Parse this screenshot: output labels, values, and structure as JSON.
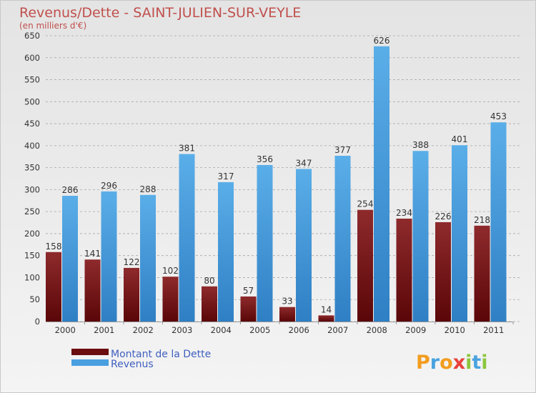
{
  "chart_data": {
    "type": "bar",
    "title": "Revenus/Dette - SAINT-JULIEN-SUR-VEYLE",
    "subtitle": "(en milliers d'€)",
    "categories": [
      "2000",
      "2001",
      "2002",
      "2003",
      "2004",
      "2005",
      "2006",
      "2007",
      "2008",
      "2009",
      "2010",
      "2011"
    ],
    "series": [
      {
        "name": "Montant de la Dette",
        "color": "#7b1416",
        "values": [
          158,
          141,
          122,
          102,
          80,
          57,
          33,
          14,
          254,
          234,
          226,
          218
        ]
      },
      {
        "name": "Revenus",
        "color": "#4a9fe0",
        "values": [
          286,
          296,
          288,
          381,
          317,
          356,
          347,
          377,
          626,
          388,
          401,
          453
        ]
      }
    ],
    "ylim": [
      0,
      650
    ],
    "yticks": [
      0,
      50,
      100,
      150,
      200,
      250,
      300,
      350,
      400,
      450,
      500,
      550,
      600,
      650
    ],
    "grid": true,
    "legend_position": "bottom-left"
  },
  "branding": {
    "logo_text": "Proxiti"
  }
}
